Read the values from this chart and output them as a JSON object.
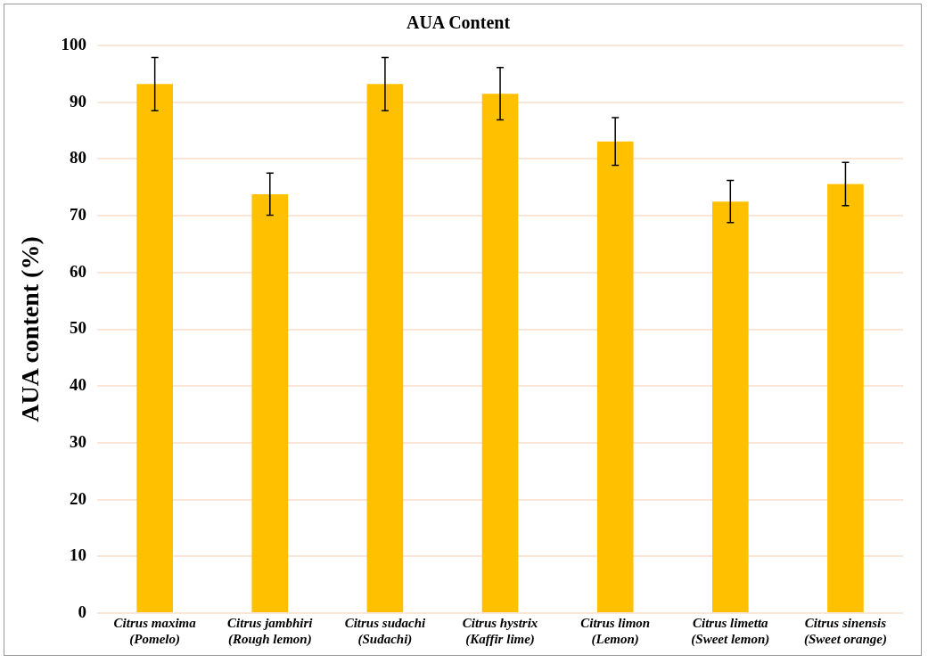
{
  "chart_data": {
    "type": "bar",
    "title": "AUA Content",
    "ylabel": "AUA content (%)",
    "categories": [
      "Citrus maxima\n(Pomelo)",
      "Citrus jambhiri\n(Rough lemon)",
      "Citrus sudachi\n(Sudachi)",
      "Citrus hystrix\n(Kaffir lime)",
      "Citrus limon\n(Lemon)",
      "Citrus limetta\n(Sweet lemon)",
      "Citrus sinensis\n(Sweet orange)"
    ],
    "values": [
      93.2,
      73.8,
      93.2,
      91.5,
      83.1,
      72.5,
      75.6
    ],
    "errors": [
      4.7,
      3.7,
      4.7,
      4.6,
      4.2,
      3.7,
      3.8
    ],
    "color": "#ffc000",
    "ylim": [
      0,
      100
    ],
    "yticks": [
      0,
      10,
      20,
      30,
      40,
      50,
      60,
      70,
      80,
      90,
      100
    ],
    "grid": "y",
    "legend": false
  }
}
